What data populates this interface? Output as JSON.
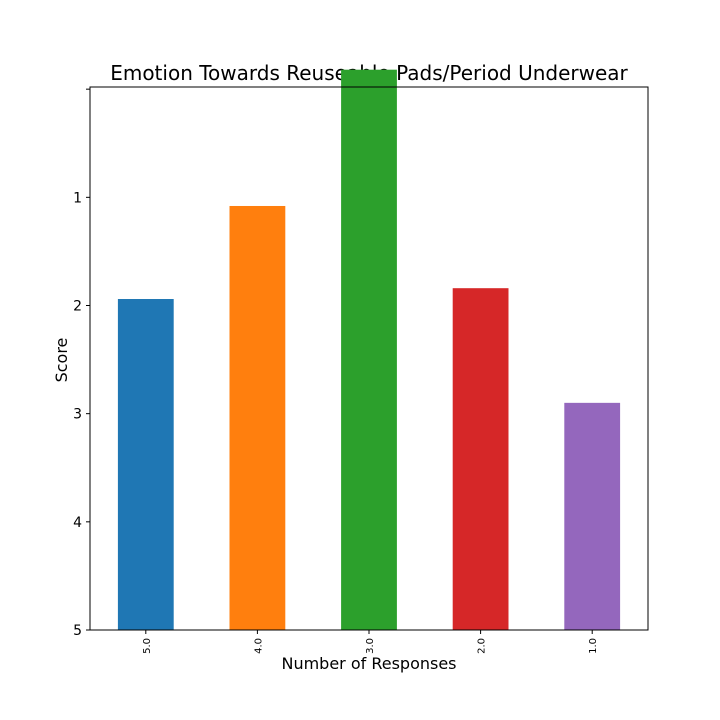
{
  "chart_data": {
    "type": "bar",
    "title": "Emotion Towards Reuseable Pads/Period Underwear",
    "xlabel": "Number of Responses",
    "ylabel": "Score",
    "categories": [
      "5.0",
      "4.0",
      "3.0",
      "2.0",
      "1.0"
    ],
    "values": [
      3.06,
      3.92,
      5.18,
      3.16,
      2.1
    ],
    "colors": [
      "#1f77b4",
      "#ff7f0e",
      "#2ca02c",
      "#d62728",
      "#9467bd"
    ],
    "yticks": [
      {
        "value": 5,
        "label": ""
      },
      {
        "value": 4,
        "label": "1"
      },
      {
        "value": 3,
        "label": "2"
      },
      {
        "value": 2,
        "label": "3"
      },
      {
        "value": 1,
        "label": "4"
      },
      {
        "value": 0,
        "label": "5"
      }
    ],
    "ylim": [
      0,
      5.02
    ],
    "grid": false,
    "legend": "none",
    "x_tick_rotation": "vertical"
  }
}
